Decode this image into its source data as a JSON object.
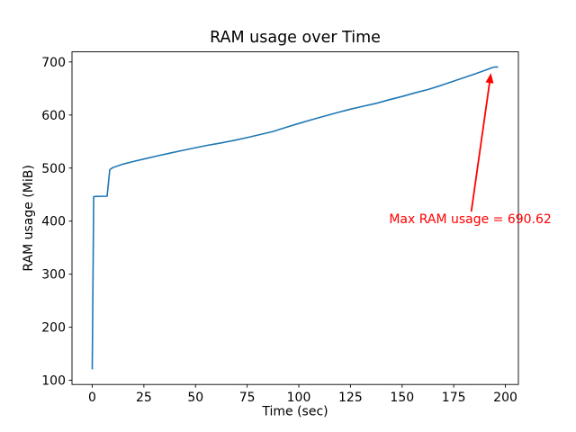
{
  "figure": {
    "background": "#ffffff",
    "text_color": "#000000",
    "spine_color": "#000000"
  },
  "chart_data": {
    "type": "line",
    "title": "RAM usage over Time",
    "xlabel": "Time (sec)",
    "ylabel": "RAM usage (MiB)",
    "xlim": [
      -9.8,
      206.3
    ],
    "ylim": [
      92.1,
      719.1
    ],
    "xticks": [
      0,
      25,
      50,
      75,
      100,
      125,
      150,
      175,
      200
    ],
    "yticks": [
      100,
      200,
      300,
      400,
      500,
      600,
      700
    ],
    "grid": false,
    "legend": null,
    "line_color": "#1f77b4",
    "series": [
      {
        "name": "RAM usage",
        "points": [
          [
            0,
            120.6
          ],
          [
            0.7,
            446.3
          ],
          [
            3,
            446.7
          ],
          [
            7.2,
            447.0
          ],
          [
            8.5,
            497.0
          ],
          [
            10,
            501.0
          ],
          [
            15,
            507.5
          ],
          [
            20,
            512.5
          ],
          [
            25,
            517.0
          ],
          [
            31,
            522.5
          ],
          [
            37.5,
            528.0
          ],
          [
            44,
            533.5
          ],
          [
            50,
            538.5
          ],
          [
            56,
            543.0
          ],
          [
            62.5,
            547.5
          ],
          [
            69,
            552.5
          ],
          [
            75,
            557.5
          ],
          [
            81,
            563.0
          ],
          [
            87.5,
            569.0
          ],
          [
            94,
            577.0
          ],
          [
            100,
            584.0
          ],
          [
            106,
            591.0
          ],
          [
            112.5,
            598.0
          ],
          [
            119,
            605.0
          ],
          [
            125,
            611.0
          ],
          [
            131,
            616.5
          ],
          [
            137.5,
            622.0
          ],
          [
            144,
            629.0
          ],
          [
            150,
            635.0
          ],
          [
            156,
            641.5
          ],
          [
            162.5,
            648.0
          ],
          [
            169,
            656.0
          ],
          [
            175,
            664.0
          ],
          [
            180,
            670.5
          ],
          [
            185,
            677.0
          ],
          [
            190,
            684.0
          ],
          [
            193,
            688.5
          ],
          [
            194.5,
            690.3
          ],
          [
            196.5,
            690.62
          ]
        ]
      }
    ],
    "annotation": {
      "text": "Max RAM usage = 690.62",
      "color": "#ff0000",
      "text_xy": [
        143.7,
        404
      ],
      "arrow_tail_xy": [
        183.5,
        418
      ],
      "arrow_tip_xy": [
        193.0,
        679
      ]
    },
    "max_value": 690.62
  }
}
